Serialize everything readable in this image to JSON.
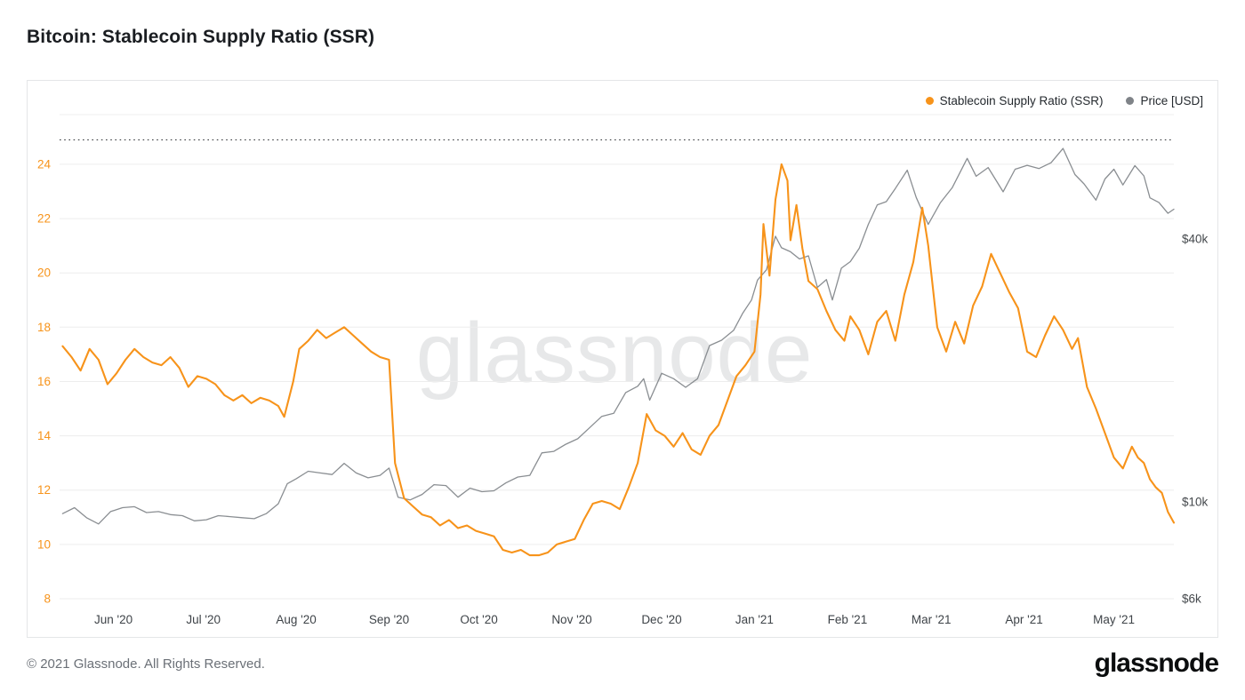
{
  "page": {
    "title": "Bitcoin: Stablecoin Supply Ratio (SSR)",
    "watermark": "glassnode",
    "footer_copyright": "© 2021 Glassnode. All Rights Reserved.",
    "brand": "glassnode"
  },
  "legend": [
    {
      "label": "Stablecoin Supply Ratio (SSR)",
      "color": "#f7931a"
    },
    {
      "label": "Price [USD]",
      "color": "#7f8388"
    }
  ],
  "chart_data": {
    "type": "line",
    "title": "Bitcoin: Stablecoin Supply Ratio (SSR)",
    "grid": "horizontal",
    "legend_position": "top-right",
    "x_range": [
      "2020-05-14",
      "2021-05-21"
    ],
    "x_ticks": [
      {
        "date": "2020-06-01",
        "label": "Jun '20"
      },
      {
        "date": "2020-07-01",
        "label": "Jul '20"
      },
      {
        "date": "2020-08-01",
        "label": "Aug '20"
      },
      {
        "date": "2020-09-01",
        "label": "Sep '20"
      },
      {
        "date": "2020-10-01",
        "label": "Oct '20"
      },
      {
        "date": "2020-11-01",
        "label": "Nov '20"
      },
      {
        "date": "2020-12-01",
        "label": "Dec '20"
      },
      {
        "date": "2021-01-01",
        "label": "Jan '21"
      },
      {
        "date": "2021-02-01",
        "label": "Feb '21"
      },
      {
        "date": "2021-03-01",
        "label": "Mar '21"
      },
      {
        "date": "2021-04-01",
        "label": "Apr '21"
      },
      {
        "date": "2021-05-01",
        "label": "May '21"
      }
    ],
    "left_axis": {
      "name": "Stablecoin Supply Ratio (SSR)",
      "color": "#f7931a",
      "min": 8,
      "max": 25.83,
      "ticks": [
        8,
        10,
        12,
        14,
        16,
        18,
        20,
        22,
        24
      ]
    },
    "right_axis": {
      "name": "Price [USD]",
      "scale": "log",
      "color": "#44484c",
      "anchor": {
        "price": 6000,
        "ssr": 8
      },
      "ssr_per_decade": 16.08,
      "ticks": [
        {
          "label": "$6k",
          "value": 6000
        },
        {
          "label": "$10k",
          "value": 10000
        },
        {
          "label": "$40k",
          "value": 40000
        }
      ]
    },
    "ath_line": {
      "ssr_value": 24.9,
      "style": "dotted",
      "color": "#3a3d40"
    },
    "series": [
      {
        "name": "Stablecoin Supply Ratio (SSR)",
        "color": "#f7931a",
        "axis": "left",
        "points": [
          [
            "2020-05-15",
            17.3
          ],
          [
            "2020-05-18",
            16.9
          ],
          [
            "2020-05-21",
            16.4
          ],
          [
            "2020-05-24",
            17.2
          ],
          [
            "2020-05-27",
            16.8
          ],
          [
            "2020-05-30",
            15.9
          ],
          [
            "2020-06-02",
            16.3
          ],
          [
            "2020-06-05",
            16.8
          ],
          [
            "2020-06-08",
            17.2
          ],
          [
            "2020-06-11",
            16.9
          ],
          [
            "2020-06-14",
            16.7
          ],
          [
            "2020-06-17",
            16.6
          ],
          [
            "2020-06-20",
            16.9
          ],
          [
            "2020-06-23",
            16.5
          ],
          [
            "2020-06-26",
            15.8
          ],
          [
            "2020-06-29",
            16.2
          ],
          [
            "2020-07-02",
            16.1
          ],
          [
            "2020-07-05",
            15.9
          ],
          [
            "2020-07-08",
            15.5
          ],
          [
            "2020-07-11",
            15.3
          ],
          [
            "2020-07-14",
            15.5
          ],
          [
            "2020-07-17",
            15.2
          ],
          [
            "2020-07-20",
            15.4
          ],
          [
            "2020-07-23",
            15.3
          ],
          [
            "2020-07-26",
            15.1
          ],
          [
            "2020-07-28",
            14.7
          ],
          [
            "2020-07-31",
            16.0
          ],
          [
            "2020-08-02",
            17.2
          ],
          [
            "2020-08-05",
            17.5
          ],
          [
            "2020-08-08",
            17.9
          ],
          [
            "2020-08-11",
            17.6
          ],
          [
            "2020-08-14",
            17.8
          ],
          [
            "2020-08-17",
            18.0
          ],
          [
            "2020-08-20",
            17.7
          ],
          [
            "2020-08-23",
            17.4
          ],
          [
            "2020-08-26",
            17.1
          ],
          [
            "2020-08-29",
            16.9
          ],
          [
            "2020-09-01",
            16.8
          ],
          [
            "2020-09-03",
            13.0
          ],
          [
            "2020-09-06",
            11.7
          ],
          [
            "2020-09-09",
            11.4
          ],
          [
            "2020-09-12",
            11.1
          ],
          [
            "2020-09-15",
            11.0
          ],
          [
            "2020-09-18",
            10.7
          ],
          [
            "2020-09-21",
            10.9
          ],
          [
            "2020-09-24",
            10.6
          ],
          [
            "2020-09-27",
            10.7
          ],
          [
            "2020-09-30",
            10.5
          ],
          [
            "2020-10-03",
            10.4
          ],
          [
            "2020-10-06",
            10.3
          ],
          [
            "2020-10-09",
            9.8
          ],
          [
            "2020-10-12",
            9.7
          ],
          [
            "2020-10-15",
            9.8
          ],
          [
            "2020-10-18",
            9.6
          ],
          [
            "2020-10-21",
            9.6
          ],
          [
            "2020-10-24",
            9.7
          ],
          [
            "2020-10-27",
            10.0
          ],
          [
            "2020-10-30",
            10.1
          ],
          [
            "2020-11-02",
            10.2
          ],
          [
            "2020-11-05",
            10.9
          ],
          [
            "2020-11-08",
            11.5
          ],
          [
            "2020-11-11",
            11.6
          ],
          [
            "2020-11-14",
            11.5
          ],
          [
            "2020-11-17",
            11.3
          ],
          [
            "2020-11-20",
            12.1
          ],
          [
            "2020-11-23",
            13.0
          ],
          [
            "2020-11-26",
            14.8
          ],
          [
            "2020-11-29",
            14.2
          ],
          [
            "2020-12-02",
            14.0
          ],
          [
            "2020-12-05",
            13.6
          ],
          [
            "2020-12-08",
            14.1
          ],
          [
            "2020-12-11",
            13.5
          ],
          [
            "2020-12-14",
            13.3
          ],
          [
            "2020-12-17",
            14.0
          ],
          [
            "2020-12-20",
            14.4
          ],
          [
            "2020-12-23",
            15.3
          ],
          [
            "2020-12-26",
            16.2
          ],
          [
            "2020-12-29",
            16.6
          ],
          [
            "2021-01-01",
            17.1
          ],
          [
            "2021-01-03",
            19.2
          ],
          [
            "2021-01-04",
            21.8
          ],
          [
            "2021-01-06",
            19.9
          ],
          [
            "2021-01-08",
            22.7
          ],
          [
            "2021-01-10",
            24.0
          ],
          [
            "2021-01-12",
            23.4
          ],
          [
            "2021-01-13",
            21.2
          ],
          [
            "2021-01-15",
            22.5
          ],
          [
            "2021-01-17",
            20.9
          ],
          [
            "2021-01-19",
            19.7
          ],
          [
            "2021-01-22",
            19.4
          ],
          [
            "2021-01-25",
            18.6
          ],
          [
            "2021-01-28",
            17.9
          ],
          [
            "2021-01-31",
            17.5
          ],
          [
            "2021-02-02",
            18.4
          ],
          [
            "2021-02-05",
            17.9
          ],
          [
            "2021-02-08",
            17.0
          ],
          [
            "2021-02-11",
            18.2
          ],
          [
            "2021-02-14",
            18.6
          ],
          [
            "2021-02-17",
            17.5
          ],
          [
            "2021-02-20",
            19.2
          ],
          [
            "2021-02-23",
            20.4
          ],
          [
            "2021-02-26",
            22.4
          ],
          [
            "2021-02-28",
            21.0
          ],
          [
            "2021-03-03",
            18.0
          ],
          [
            "2021-03-06",
            17.1
          ],
          [
            "2021-03-09",
            18.2
          ],
          [
            "2021-03-12",
            17.4
          ],
          [
            "2021-03-15",
            18.8
          ],
          [
            "2021-03-18",
            19.5
          ],
          [
            "2021-03-21",
            20.7
          ],
          [
            "2021-03-24",
            20.0
          ],
          [
            "2021-03-27",
            19.3
          ],
          [
            "2021-03-30",
            18.7
          ],
          [
            "2021-04-02",
            17.1
          ],
          [
            "2021-04-05",
            16.9
          ],
          [
            "2021-04-08",
            17.7
          ],
          [
            "2021-04-11",
            18.4
          ],
          [
            "2021-04-14",
            17.9
          ],
          [
            "2021-04-17",
            17.2
          ],
          [
            "2021-04-19",
            17.6
          ],
          [
            "2021-04-22",
            15.8
          ],
          [
            "2021-04-25",
            15.0
          ],
          [
            "2021-04-28",
            14.1
          ],
          [
            "2021-05-01",
            13.2
          ],
          [
            "2021-05-04",
            12.8
          ],
          [
            "2021-05-07",
            13.6
          ],
          [
            "2021-05-09",
            13.2
          ],
          [
            "2021-05-11",
            13.0
          ],
          [
            "2021-05-13",
            12.4
          ],
          [
            "2021-05-15",
            12.1
          ],
          [
            "2021-05-17",
            11.9
          ],
          [
            "2021-05-19",
            11.2
          ],
          [
            "2021-05-21",
            10.8
          ]
        ]
      },
      {
        "name": "Price [USD]",
        "color": "#8a8e92",
        "axis": "right",
        "points": [
          [
            "2020-05-15",
            9400
          ],
          [
            "2020-05-19",
            9700
          ],
          [
            "2020-05-23",
            9200
          ],
          [
            "2020-05-27",
            8900
          ],
          [
            "2020-05-31",
            9500
          ],
          [
            "2020-06-04",
            9700
          ],
          [
            "2020-06-08",
            9750
          ],
          [
            "2020-06-12",
            9450
          ],
          [
            "2020-06-16",
            9500
          ],
          [
            "2020-06-20",
            9350
          ],
          [
            "2020-06-24",
            9300
          ],
          [
            "2020-06-28",
            9050
          ],
          [
            "2020-07-02",
            9100
          ],
          [
            "2020-07-06",
            9300
          ],
          [
            "2020-07-10",
            9250
          ],
          [
            "2020-07-14",
            9200
          ],
          [
            "2020-07-18",
            9150
          ],
          [
            "2020-07-22",
            9400
          ],
          [
            "2020-07-26",
            9900
          ],
          [
            "2020-07-29",
            11000
          ],
          [
            "2020-08-01",
            11300
          ],
          [
            "2020-08-05",
            11750
          ],
          [
            "2020-08-09",
            11650
          ],
          [
            "2020-08-13",
            11550
          ],
          [
            "2020-08-17",
            12250
          ],
          [
            "2020-08-21",
            11650
          ],
          [
            "2020-08-25",
            11350
          ],
          [
            "2020-08-29",
            11500
          ],
          [
            "2020-09-01",
            11950
          ],
          [
            "2020-09-04",
            10250
          ],
          [
            "2020-09-08",
            10100
          ],
          [
            "2020-09-12",
            10400
          ],
          [
            "2020-09-16",
            10950
          ],
          [
            "2020-09-20",
            10900
          ],
          [
            "2020-09-24",
            10250
          ],
          [
            "2020-09-28",
            10750
          ],
          [
            "2020-10-02",
            10550
          ],
          [
            "2020-10-06",
            10600
          ],
          [
            "2020-10-10",
            11050
          ],
          [
            "2020-10-14",
            11400
          ],
          [
            "2020-10-18",
            11500
          ],
          [
            "2020-10-22",
            12950
          ],
          [
            "2020-10-26",
            13050
          ],
          [
            "2020-10-30",
            13550
          ],
          [
            "2020-11-03",
            13950
          ],
          [
            "2020-11-07",
            14800
          ],
          [
            "2020-11-11",
            15700
          ],
          [
            "2020-11-15",
            15950
          ],
          [
            "2020-11-19",
            17800
          ],
          [
            "2020-11-23",
            18400
          ],
          [
            "2020-11-25",
            19150
          ],
          [
            "2020-11-27",
            17100
          ],
          [
            "2020-12-01",
            19700
          ],
          [
            "2020-12-05",
            19150
          ],
          [
            "2020-12-09",
            18300
          ],
          [
            "2020-12-13",
            19150
          ],
          [
            "2020-12-17",
            22800
          ],
          [
            "2020-12-21",
            23450
          ],
          [
            "2020-12-25",
            24700
          ],
          [
            "2020-12-28",
            27000
          ],
          [
            "2020-12-31",
            29000
          ],
          [
            "2021-01-02",
            32200
          ],
          [
            "2021-01-05",
            34000
          ],
          [
            "2021-01-08",
            40600
          ],
          [
            "2021-01-10",
            38200
          ],
          [
            "2021-01-13",
            37400
          ],
          [
            "2021-01-16",
            36000
          ],
          [
            "2021-01-19",
            36600
          ],
          [
            "2021-01-22",
            31000
          ],
          [
            "2021-01-25",
            32300
          ],
          [
            "2021-01-27",
            29000
          ],
          [
            "2021-01-30",
            34300
          ],
          [
            "2021-02-02",
            35500
          ],
          [
            "2021-02-05",
            38100
          ],
          [
            "2021-02-08",
            43200
          ],
          [
            "2021-02-11",
            47900
          ],
          [
            "2021-02-14",
            48700
          ],
          [
            "2021-02-17",
            52200
          ],
          [
            "2021-02-21",
            57500
          ],
          [
            "2021-02-24",
            49800
          ],
          [
            "2021-02-28",
            43200
          ],
          [
            "2021-03-04",
            48400
          ],
          [
            "2021-03-08",
            52400
          ],
          [
            "2021-03-13",
            61200
          ],
          [
            "2021-03-16",
            55700
          ],
          [
            "2021-03-20",
            58300
          ],
          [
            "2021-03-25",
            51300
          ],
          [
            "2021-03-29",
            57800
          ],
          [
            "2021-04-02",
            59000
          ],
          [
            "2021-04-06",
            58000
          ],
          [
            "2021-04-10",
            59800
          ],
          [
            "2021-04-14",
            64500
          ],
          [
            "2021-04-18",
            56200
          ],
          [
            "2021-04-21",
            53500
          ],
          [
            "2021-04-25",
            49100
          ],
          [
            "2021-04-28",
            54900
          ],
          [
            "2021-05-01",
            57800
          ],
          [
            "2021-05-04",
            53200
          ],
          [
            "2021-05-08",
            58900
          ],
          [
            "2021-05-11",
            55800
          ],
          [
            "2021-05-13",
            49700
          ],
          [
            "2021-05-16",
            48500
          ],
          [
            "2021-05-19",
            45800
          ],
          [
            "2021-05-21",
            46800
          ]
        ]
      }
    ]
  }
}
